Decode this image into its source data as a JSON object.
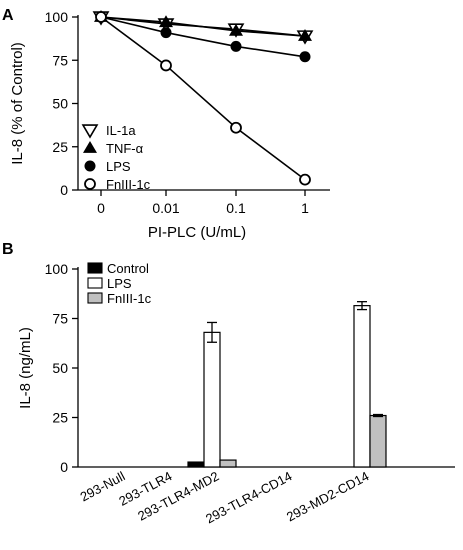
{
  "chart_data": [
    {
      "panel": "A",
      "type": "line",
      "xlabel": "PI-PLC (U/mL)",
      "ylabel": "IL-8 (% of Control)",
      "x": [
        "0",
        "0.01",
        "0.1",
        "1"
      ],
      "ylim": [
        0,
        100
      ],
      "yticks": [
        "0",
        "25",
        "50",
        "75",
        "100"
      ],
      "series": [
        {
          "name": "IL-1a",
          "marker": "triangle-down-open",
          "values": [
            100,
            96,
            93,
            89
          ]
        },
        {
          "name": "TNF-α",
          "marker": "triangle-up-filled",
          "values": [
            100,
            97,
            92,
            89
          ]
        },
        {
          "name": "LPS",
          "marker": "circle-filled",
          "values": [
            100,
            91,
            83,
            77
          ]
        },
        {
          "name": "FnIII-1c",
          "marker": "circle-open",
          "values": [
            100,
            72,
            36,
            6
          ]
        }
      ],
      "legend_position": "bottom-left",
      "grid": false
    },
    {
      "panel": "B",
      "type": "bar",
      "ylabel": "IL-8 (ng/mL)",
      "ylim": [
        0,
        100
      ],
      "yticks": [
        "0",
        "25",
        "50",
        "75",
        "100"
      ],
      "categories": [
        "293-Null",
        "293-TLR4",
        "293-TLR4-MD2",
        "293-TLR4-CD14",
        "293-MD2-CD14"
      ],
      "series": [
        {
          "name": "Control",
          "color": "#000000",
          "values": [
            0,
            0,
            2.5,
            0,
            0
          ],
          "errors": [
            0,
            0,
            0,
            0,
            0
          ]
        },
        {
          "name": "LPS",
          "color": "#ffffff",
          "values": [
            0,
            0,
            68,
            0,
            81.5
          ],
          "errors": [
            0,
            0,
            5,
            0,
            2
          ]
        },
        {
          "name": "FnIII-1c",
          "color": "#c0c0c0",
          "values": [
            0,
            0,
            3.5,
            0,
            26
          ],
          "errors": [
            0,
            0,
            0,
            0,
            0.5
          ]
        }
      ],
      "legend_position": "top-left",
      "grid": false
    }
  ]
}
